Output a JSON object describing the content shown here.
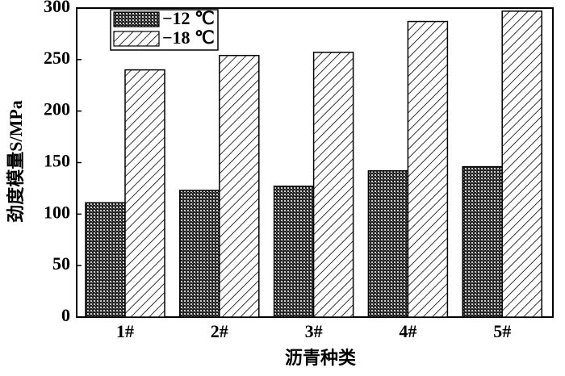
{
  "chart_data": {
    "type": "bar",
    "x_label": "沥青种类",
    "y_label": "劲度模量S/MPa",
    "categories": [
      "1#",
      "2#",
      "3#",
      "4#",
      "5#"
    ],
    "series": [
      {
        "name": "−12 ℃",
        "values": [
          111,
          123,
          127,
          142,
          146
        ]
      },
      {
        "name": "−18 ℃",
        "values": [
          240,
          254,
          257,
          287,
          297
        ]
      }
    ],
    "ylim": [
      0,
      300
    ],
    "yticks": [
      0,
      50,
      100,
      150,
      200,
      250,
      300
    ],
    "grid": false,
    "legend": "upper left"
  }
}
